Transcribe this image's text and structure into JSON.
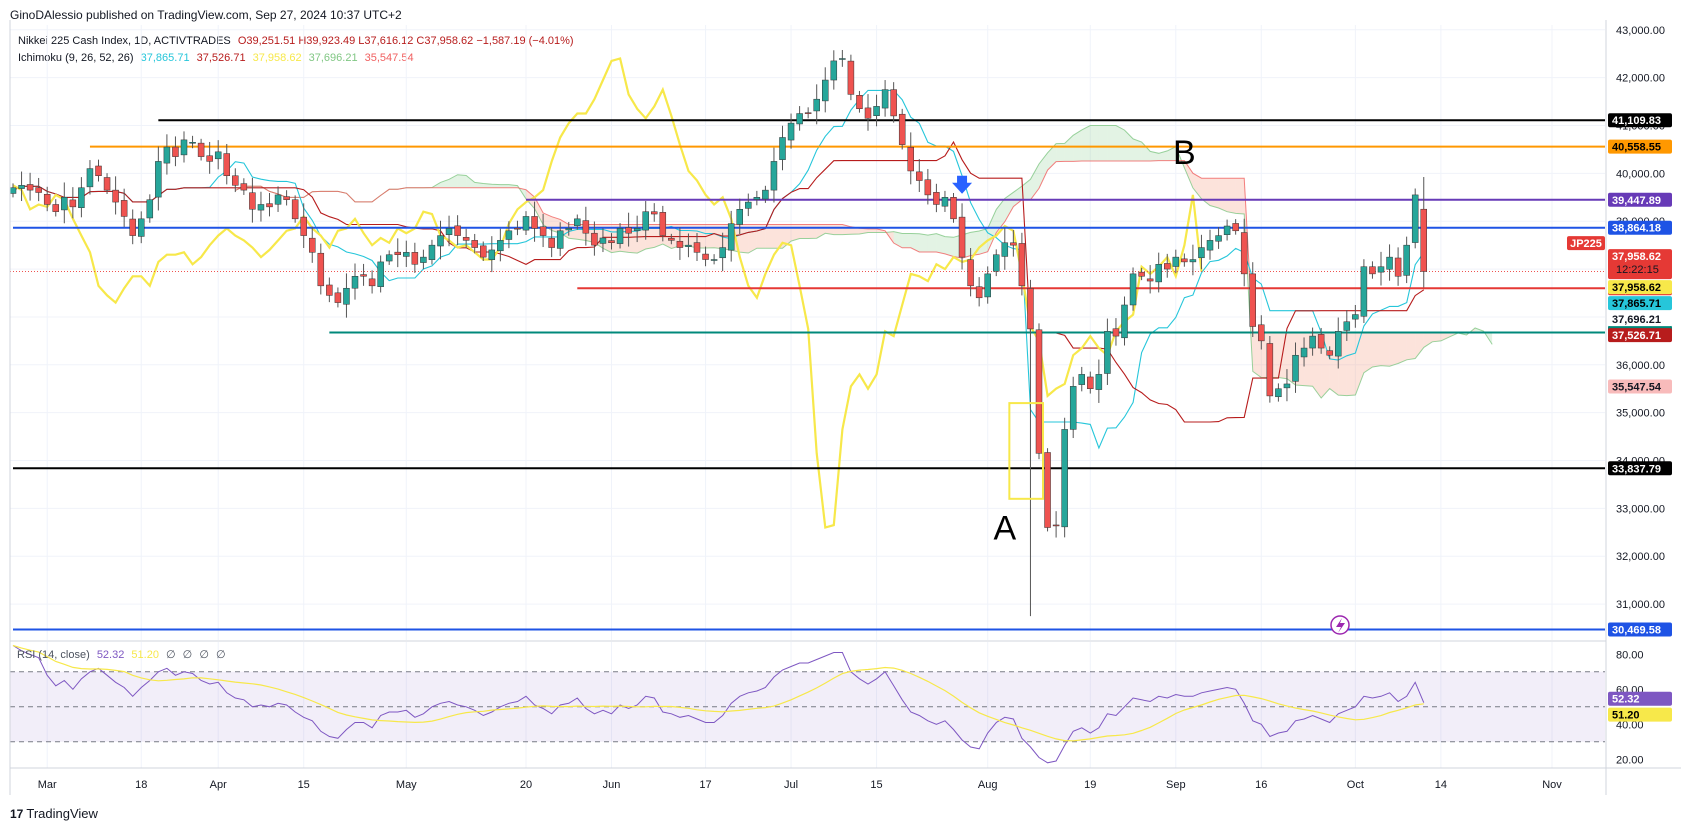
{
  "publisher": "GinoDAlessio published on TradingView.com, Sep 27, 2024 10:37 UTC+2",
  "brand": "TradingView",
  "legend": {
    "symbol": "Nikkei 225 Cash Index, 1D, ACTIVTRADES",
    "ohlc": "O39,251.51 H39,923.49 L37,616.12 C37,958.62 −1,587.19 (−4.01%)",
    "ichimoku_label": "Ichimoku (9, 26, 52, 26)",
    "ichimoku_values": [
      {
        "text": "37,865.71",
        "color": "#26c6da"
      },
      {
        "text": "37,526.71",
        "color": "#b71c1c"
      },
      {
        "text": "37,958.62",
        "color": "#f7e84a"
      },
      {
        "text": "37,696.21",
        "color": "#81c784"
      },
      {
        "text": "35,547.54",
        "color": "#f06060"
      }
    ]
  },
  "rsi_legend": {
    "label": "RSI (14, close)",
    "values": [
      {
        "text": "52.32",
        "color": "#7e57c2"
      },
      {
        "text": "51.20",
        "color": "#f7e84a"
      },
      {
        "text": "∅",
        "color": "#4c525e"
      },
      {
        "text": "∅",
        "color": "#4c525e"
      },
      {
        "text": "∅",
        "color": "#4c525e"
      },
      {
        "text": "∅",
        "color": "#4c525e"
      }
    ]
  },
  "chart_data": {
    "type": "candlestick",
    "y_ticks": [
      31000,
      32000,
      33000,
      34000,
      35000,
      36000,
      37000,
      38000,
      39000,
      40000,
      41000,
      42000,
      43000
    ],
    "y_tick_labels": [
      "31,000.00",
      "32,000.00",
      "33,000.00",
      "34,000.00",
      "35,000.00",
      "36,000.00",
      "37,000.00",
      "38,000.00",
      "39,000.00",
      "40,000.00",
      "41,000.00",
      "42,000.00",
      "43,000.00"
    ],
    "ylim": [
      30250,
      43100
    ],
    "x_ticks": [
      {
        "label": "Mar",
        "i": 4
      },
      {
        "label": "18",
        "i": 15
      },
      {
        "label": "Apr",
        "i": 24
      },
      {
        "label": "15",
        "i": 34
      },
      {
        "label": "May",
        "i": 46
      },
      {
        "label": "20",
        "i": 60
      },
      {
        "label": "Jun",
        "i": 70
      },
      {
        "label": "17",
        "i": 81
      },
      {
        "label": "Jul",
        "i": 91
      },
      {
        "label": "15",
        "i": 101
      },
      {
        "label": "Aug",
        "i": 114
      },
      {
        "label": "19",
        "i": 126
      },
      {
        "label": "Sep",
        "i": 136
      },
      {
        "label": "16",
        "i": 146
      },
      {
        "label": "Oct",
        "i": 157
      },
      {
        "label": "14",
        "i": 167
      },
      {
        "label": "Nov",
        "i": 180
      }
    ],
    "horizontal_levels": [
      {
        "value": 41109.83,
        "color": "#000000",
        "start_i": 17,
        "tag": "41,109.83",
        "tag_bg": "#000000",
        "tag_fg": "#ffffff"
      },
      {
        "value": 40558.55,
        "color": "#ff9800",
        "start_i": 9,
        "tag": "40,558.55",
        "tag_bg": "#ff9800",
        "tag_fg": "#000000"
      },
      {
        "value": 39447.89,
        "color": "#673ab7",
        "start_i": 60,
        "tag": "39,447.89",
        "tag_bg": "#673ab7",
        "tag_fg": "#ffffff"
      },
      {
        "value": 38864.18,
        "color": "#1e53e5",
        "start_i": 0,
        "tag": "38,864.18",
        "tag_bg": "#1e53e5",
        "tag_fg": "#ffffff"
      },
      {
        "value": 37599.47,
        "color": "#e53935",
        "start_i": 66,
        "tag": "37,599.47",
        "tag_bg": "#e53935",
        "tag_fg": "#ffffff"
      },
      {
        "value": 36675.27,
        "color": "#00897b",
        "start_i": 37,
        "tag": "36,675.27",
        "tag_bg": "#00897b",
        "tag_fg": "#ffffff"
      },
      {
        "value": 33837.79,
        "color": "#000000",
        "start_i": 0,
        "tag": "33,837.79",
        "tag_bg": "#000000",
        "tag_fg": "#ffffff"
      },
      {
        "value": 30469.58,
        "color": "#1e53e5",
        "start_i": 0,
        "tag": "30,469.58",
        "tag_bg": "#1e53e5",
        "tag_fg": "#ffffff"
      }
    ],
    "price_tags": [
      {
        "value": 37958.62,
        "text": "37,958.62",
        "sub": "12:22:15",
        "bg": "#e53935",
        "fg": "#ffffff"
      },
      {
        "value": 37958.62,
        "text": "37,958.62",
        "bg": "#f7e84a",
        "fg": "#000000"
      },
      {
        "value": 37865.71,
        "text": "37,865.71",
        "bg": "#26c6da",
        "fg": "#000000"
      },
      {
        "value": 37696.21,
        "text": "37,696.21",
        "bg": "#ffffff",
        "fg": "#131722"
      },
      {
        "value": 37526.71,
        "text": "37,526.71",
        "bg": "#b71c1c",
        "fg": "#ffffff"
      },
      {
        "value": 35547.54,
        "text": "35,547.54",
        "bg": "#f8bbbb",
        "fg": "#131722"
      }
    ],
    "symbol_tag": "JP225",
    "annotations": [
      {
        "text": "A",
        "i": 116,
        "value": 32350
      },
      {
        "text": "B",
        "i": 137,
        "value": 40200
      }
    ],
    "closes": [
      39700,
      39750,
      39650,
      39600,
      39350,
      39200,
      39500,
      39300,
      39700,
      40100,
      39950,
      39650,
      39400,
      39100,
      38700,
      39050,
      39450,
      40250,
      40550,
      40350,
      40700,
      40650,
      40350,
      40250,
      40450,
      39950,
      39750,
      39650,
      39250,
      39350,
      39300,
      39550,
      39450,
      39050,
      38700,
      38350,
      37650,
      37450,
      37300,
      37600,
      37850,
      37850,
      37650,
      38150,
      38300,
      38300,
      38350,
      38100,
      38250,
      38500,
      38700,
      38850,
      38700,
      38600,
      38450,
      38250,
      38400,
      38600,
      38800,
      38850,
      39100,
      38850,
      38700,
      38450,
      38800,
      38850,
      39050,
      38750,
      38500,
      38650,
      38550,
      38850,
      38750,
      38850,
      39200,
      39150,
      38700,
      38600,
      38450,
      38500,
      38350,
      38200,
      38200,
      38450,
      38950,
      39250,
      39400,
      39500,
      39650,
      40250,
      40750,
      41050,
      41250,
      41250,
      41550,
      41950,
      42350,
      42400,
      41650,
      41350,
      41150,
      41400,
      41750,
      41200,
      40600,
      40050,
      39850,
      39550,
      39350,
      39500,
      39050,
      38250,
      37650,
      37400,
      37900,
      38300,
      38550,
      38500,
      37650,
      36750,
      34150,
      32600,
      32650,
      34650,
      35550,
      35800,
      35500,
      35800,
      36700,
      36600,
      37250,
      37900,
      37850,
      37750,
      38100,
      38000,
      38250,
      38150,
      38200,
      38450,
      38600,
      38700,
      38900,
      38800,
      37900,
      36800,
      36500,
      35350,
      35500,
      35600,
      36200,
      36350,
      36600,
      36350,
      36200,
      36700,
      36900,
      37050,
      38050,
      37900,
      38050,
      38250,
      37850,
      38500,
      39550,
      37950
    ],
    "rsi": [
      85,
      82,
      80,
      78,
      68,
      62,
      65,
      60,
      66,
      70,
      72,
      68,
      64,
      61,
      56,
      61,
      65,
      70,
      72,
      68,
      70,
      69,
      65,
      63,
      64,
      58,
      55,
      54,
      50,
      51,
      50,
      52,
      51,
      47,
      44,
      42,
      36,
      33,
      32,
      37,
      41,
      41,
      38,
      45,
      47,
      47,
      48,
      44,
      46,
      50,
      52,
      53,
      51,
      50,
      48,
      45,
      47,
      50,
      52,
      53,
      56,
      51,
      49,
      46,
      51,
      52,
      55,
      49,
      46,
      48,
      46,
      51,
      49,
      51,
      56,
      55,
      47,
      46,
      44,
      45,
      43,
      41,
      41,
      45,
      52,
      56,
      58,
      59,
      61,
      67,
      71,
      73,
      75,
      75,
      77,
      79,
      81,
      81,
      70,
      66,
      63,
      66,
      70,
      62,
      54,
      47,
      45,
      42,
      40,
      42,
      37,
      31,
      27,
      26,
      35,
      41,
      44,
      43,
      32,
      27,
      21,
      18,
      19,
      28,
      36,
      38,
      35,
      38,
      46,
      45,
      50,
      55,
      54,
      53,
      56,
      55,
      57,
      56,
      56,
      58,
      59,
      60,
      61,
      60,
      52,
      42,
      40,
      33,
      35,
      36,
      42,
      43,
      45,
      43,
      41,
      46,
      48,
      50,
      56,
      55,
      56,
      58,
      53,
      56,
      64,
      52.32
    ],
    "rsi_ticks": [
      20,
      40,
      60,
      80
    ],
    "rsi_tick_labels": [
      "20.00",
      "40.00",
      "60.00",
      "80.00"
    ],
    "rsi_levels": [
      30,
      50,
      70
    ],
    "rsi_tags": [
      {
        "value": 52.32,
        "text": "52.32",
        "bg": "#7e57c2",
        "fg": "#ffffff"
      },
      {
        "value": 51.2,
        "text": "51.20",
        "bg": "#f7e84a",
        "fg": "#000000"
      }
    ],
    "colors": {
      "up": "#26a69a",
      "down": "#ef5350",
      "tenkan": "#26c6da",
      "kijun": "#b71c1c",
      "chikou": "#f7e84a",
      "span_a": "#81c784",
      "span_b": "#f06060",
      "rsi": "#7e57c2",
      "rsi_ma": "#f7e84a"
    }
  }
}
